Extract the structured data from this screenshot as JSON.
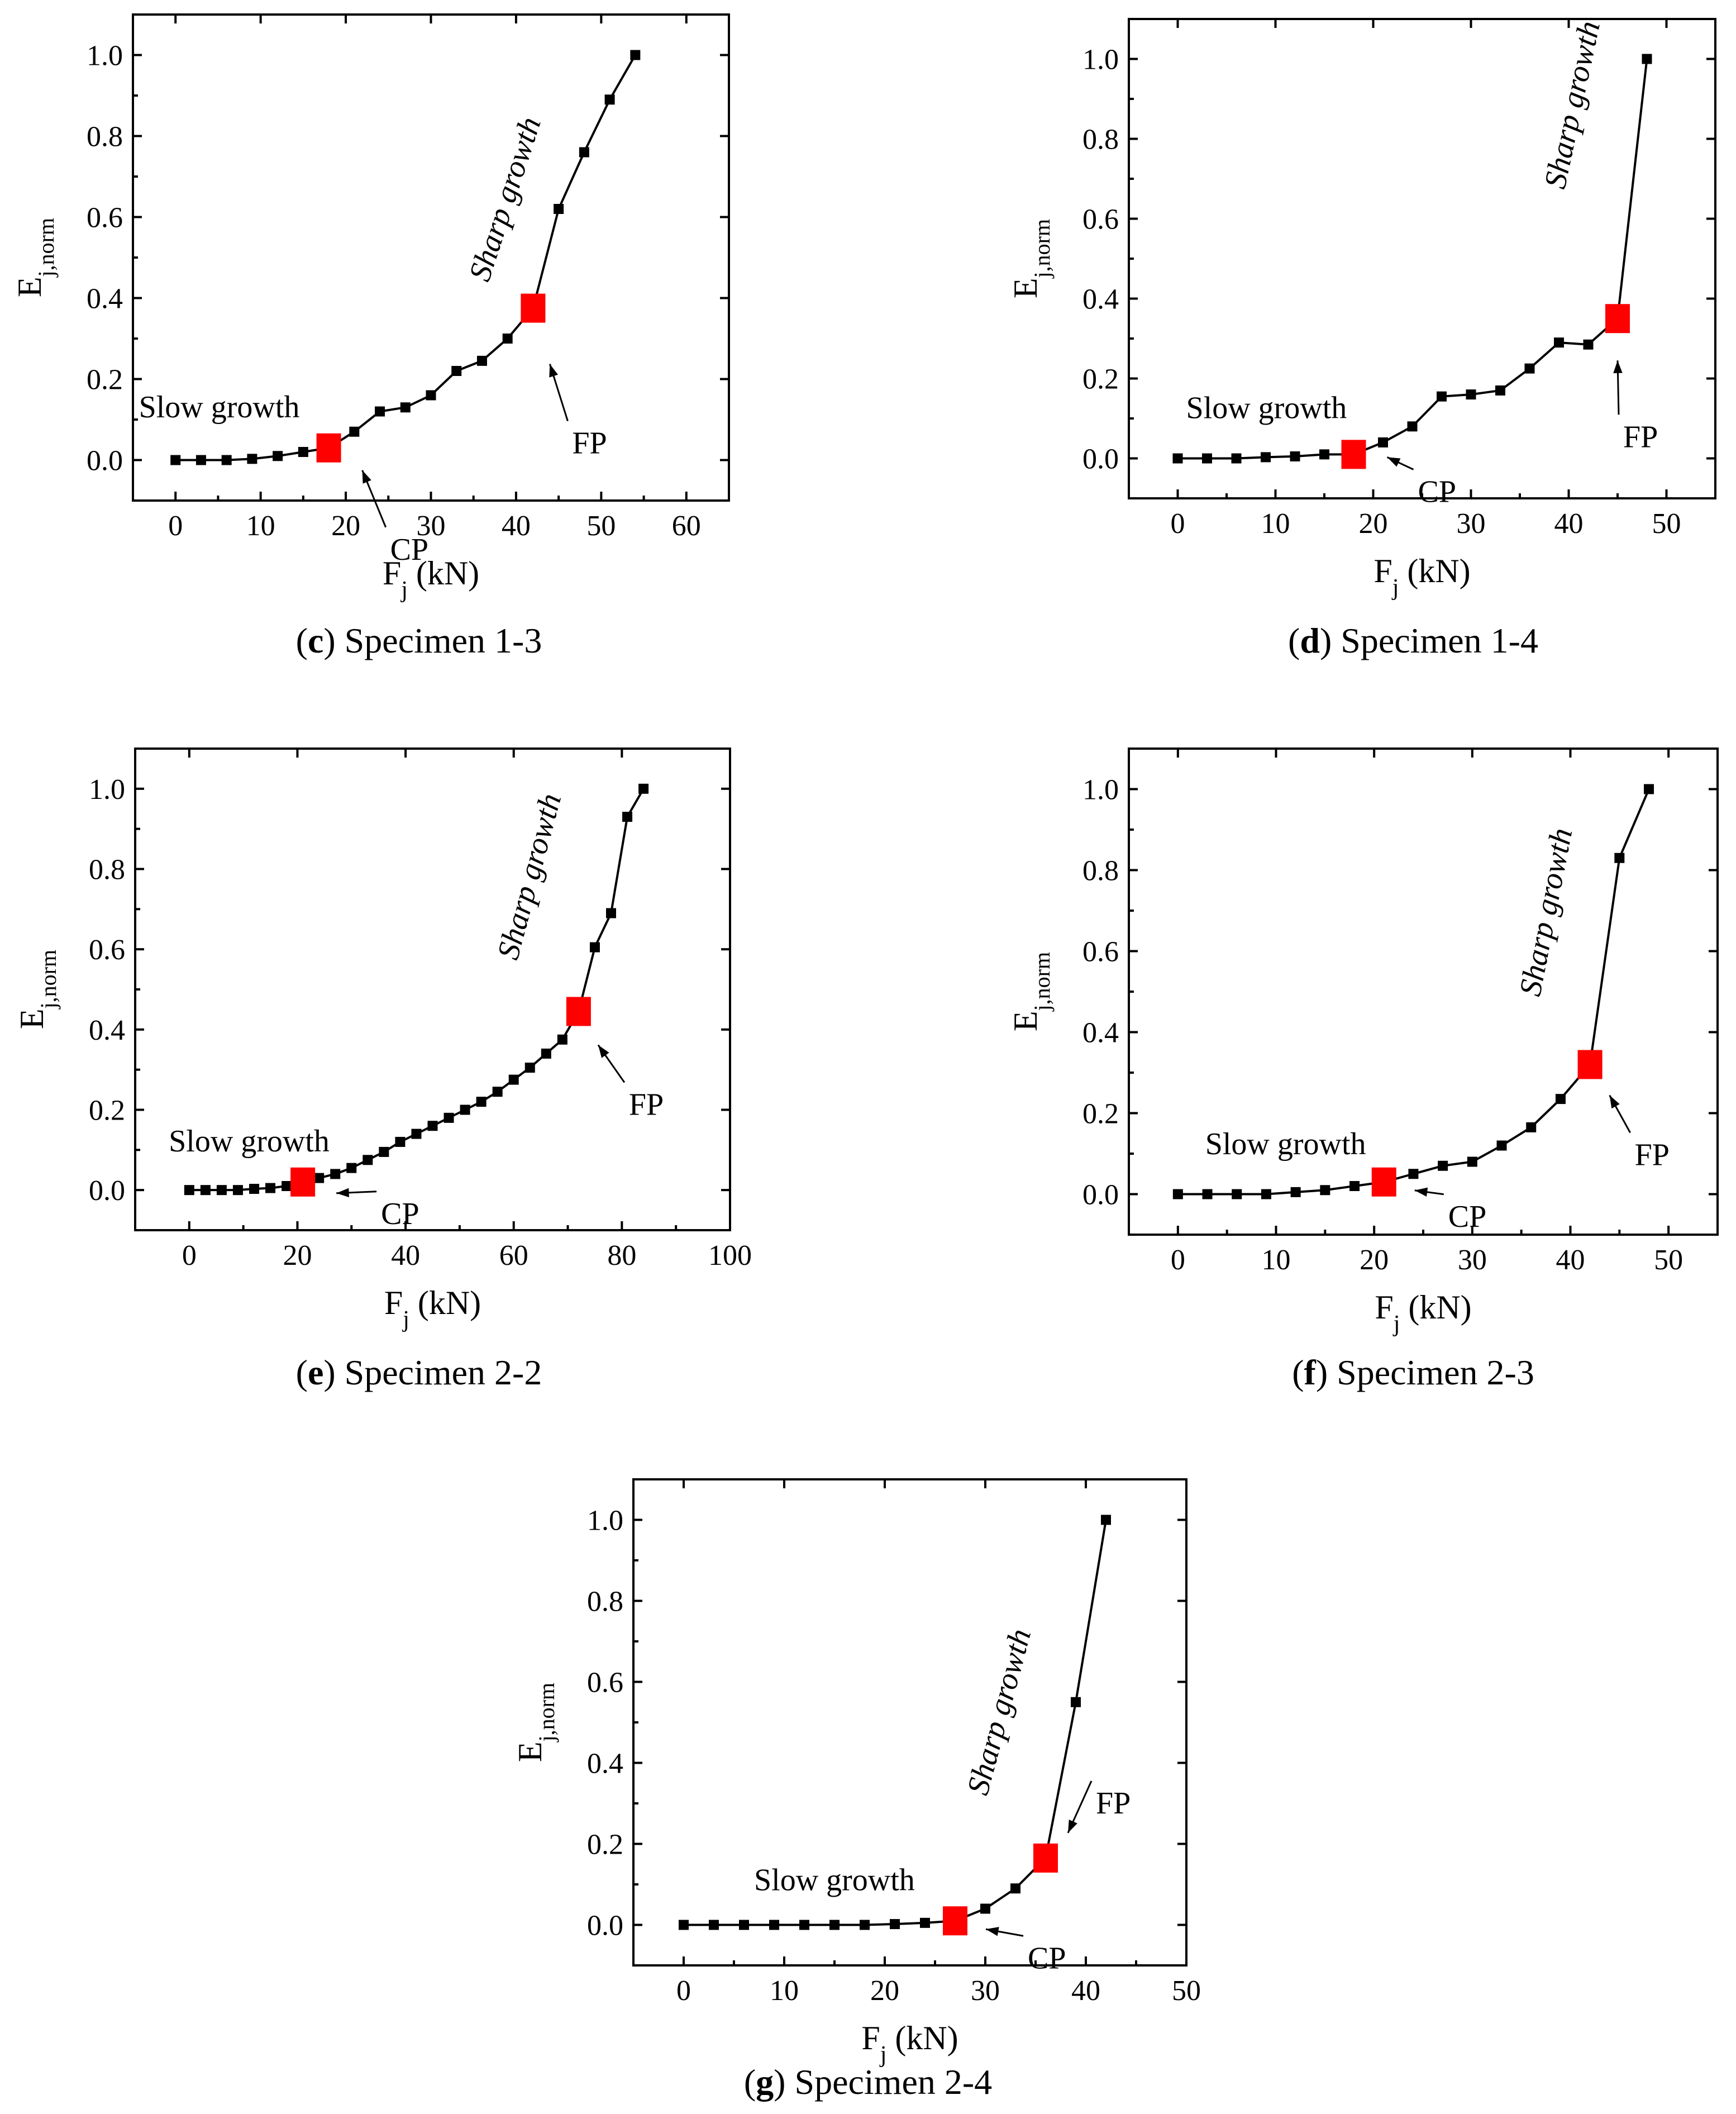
{
  "chart_data": [
    {
      "type": "line",
      "panel_letter": "c",
      "caption": "Specimen 1-3",
      "xlabel_main": "F",
      "xlabel_sub": "j",
      "xlabel_unit": " (kN)",
      "ylabel_main": "E",
      "ylabel_sub": "j,norm",
      "xlim": [
        -5,
        65
      ],
      "ylim": [
        -0.1,
        1.1
      ],
      "xticks": [
        0,
        10,
        20,
        30,
        40,
        50,
        60
      ],
      "yticks": [
        0.0,
        0.2,
        0.4,
        0.6,
        0.8,
        1.0
      ],
      "x": [
        0,
        3,
        6,
        9,
        12,
        15,
        18,
        21,
        24,
        27,
        30,
        33,
        36,
        39,
        42,
        45,
        48,
        51,
        54
      ],
      "y": [
        0.0,
        0.0,
        0.0,
        0.003,
        0.01,
        0.02,
        0.03,
        0.07,
        0.12,
        0.13,
        0.16,
        0.22,
        0.245,
        0.3,
        0.375,
        0.62,
        0.76,
        0.89,
        1.0
      ],
      "cp": {
        "x": 18,
        "y": 0.03,
        "label": "CP"
      },
      "fp": {
        "x": 42,
        "y": 0.375,
        "label": "FP"
      },
      "slow_label": "Slow growth",
      "sharp_label": "Sharp growth"
    },
    {
      "type": "line",
      "panel_letter": "d",
      "caption": "Specimen 1-4",
      "xlabel_main": "F",
      "xlabel_sub": "j",
      "xlabel_unit": " (kN)",
      "ylabel_main": "E",
      "ylabel_sub": "j,norm",
      "xlim": [
        -5,
        55
      ],
      "ylim": [
        -0.1,
        1.1
      ],
      "xticks": [
        0,
        10,
        20,
        30,
        40,
        50
      ],
      "yticks": [
        0.0,
        0.2,
        0.4,
        0.6,
        0.8,
        1.0
      ],
      "x": [
        0,
        3,
        6,
        9,
        12,
        15,
        18,
        21,
        24,
        27,
        30,
        33,
        36,
        39,
        42,
        45,
        48
      ],
      "y": [
        0.0,
        0.0,
        0.0,
        0.003,
        0.005,
        0.01,
        0.01,
        0.04,
        0.08,
        0.155,
        0.16,
        0.17,
        0.225,
        0.29,
        0.285,
        0.35,
        1.0
      ],
      "cp": {
        "x": 18,
        "y": 0.01,
        "label": "CP"
      },
      "fp": {
        "x": 45,
        "y": 0.35,
        "label": "FP"
      },
      "slow_label": "Slow growth",
      "sharp_label": "Sharp growth"
    },
    {
      "type": "line",
      "panel_letter": "e",
      "caption": "Specimen 2-2",
      "xlabel_main": "F",
      "xlabel_sub": "j",
      "xlabel_unit": " (kN)",
      "ylabel_main": "E",
      "ylabel_sub": "j,norm",
      "xlim": [
        -10,
        100
      ],
      "ylim": [
        -0.1,
        1.1
      ],
      "xticks": [
        0,
        20,
        40,
        60,
        80,
        100
      ],
      "yticks": [
        0.0,
        0.2,
        0.4,
        0.6,
        0.8,
        1.0
      ],
      "x": [
        0,
        3,
        6,
        9,
        12,
        15,
        18,
        21,
        24,
        27,
        30,
        33,
        36,
        39,
        42,
        45,
        48,
        51,
        54,
        57,
        60,
        63,
        66,
        69,
        72,
        75,
        78,
        81,
        84
      ],
      "y": [
        0.0,
        0.0,
        0.0,
        0.0,
        0.003,
        0.005,
        0.01,
        0.02,
        0.03,
        0.04,
        0.055,
        0.075,
        0.095,
        0.12,
        0.14,
        0.16,
        0.18,
        0.2,
        0.22,
        0.245,
        0.275,
        0.305,
        0.34,
        0.375,
        0.445,
        0.605,
        0.69,
        0.93,
        1.0
      ],
      "cp": {
        "x": 21,
        "y": 0.02,
        "label": "CP"
      },
      "fp": {
        "x": 72,
        "y": 0.445,
        "label": "FP"
      },
      "slow_label": "Slow growth",
      "sharp_label": "Sharp growth"
    },
    {
      "type": "line",
      "panel_letter": "f",
      "caption": "Specimen 2-3",
      "xlabel_main": "F",
      "xlabel_sub": "j",
      "xlabel_unit": " (kN)",
      "ylabel_main": "E",
      "ylabel_sub": "j,norm",
      "xlim": [
        -5,
        55
      ],
      "ylim": [
        -0.1,
        1.1
      ],
      "xticks": [
        0,
        10,
        20,
        30,
        40,
        50
      ],
      "yticks": [
        0.0,
        0.2,
        0.4,
        0.6,
        0.8,
        1.0
      ],
      "x": [
        0,
        3,
        6,
        9,
        12,
        15,
        18,
        21,
        24,
        27,
        30,
        33,
        36,
        39,
        42,
        45,
        48
      ],
      "y": [
        0.0,
        0.0,
        0.0,
        0.0,
        0.005,
        0.01,
        0.02,
        0.03,
        0.05,
        0.07,
        0.08,
        0.12,
        0.165,
        0.235,
        0.32,
        0.83,
        1.0
      ],
      "cp": {
        "x": 21,
        "y": 0.03,
        "label": "CP"
      },
      "fp": {
        "x": 42,
        "y": 0.32,
        "label": "FP"
      },
      "slow_label": "Slow growth",
      "sharp_label": "Sharp growth"
    },
    {
      "type": "line",
      "panel_letter": "g",
      "caption": "Specimen 2-4",
      "xlabel_main": "F",
      "xlabel_sub": "j",
      "xlabel_unit": " (kN)",
      "ylabel_main": "E",
      "ylabel_sub": "j,norm",
      "xlim": [
        -5,
        50
      ],
      "ylim": [
        -0.1,
        1.1
      ],
      "xticks": [
        0,
        10,
        20,
        30,
        40,
        50
      ],
      "yticks": [
        0.0,
        0.2,
        0.4,
        0.6,
        0.8,
        1.0
      ],
      "x": [
        0,
        3,
        6,
        9,
        12,
        15,
        18,
        21,
        24,
        27,
        30,
        33,
        36,
        39,
        42
      ],
      "y": [
        0.0,
        0.0,
        0.0,
        0.0,
        0.0,
        0.0,
        0.0,
        0.002,
        0.005,
        0.01,
        0.04,
        0.09,
        0.165,
        0.55,
        1.0
      ],
      "cp": {
        "x": 27,
        "y": 0.01,
        "label": "CP"
      },
      "fp": {
        "x": 36,
        "y": 0.165,
        "label": "FP"
      },
      "slow_label": "Slow growth",
      "sharp_label": "Sharp growth"
    }
  ]
}
